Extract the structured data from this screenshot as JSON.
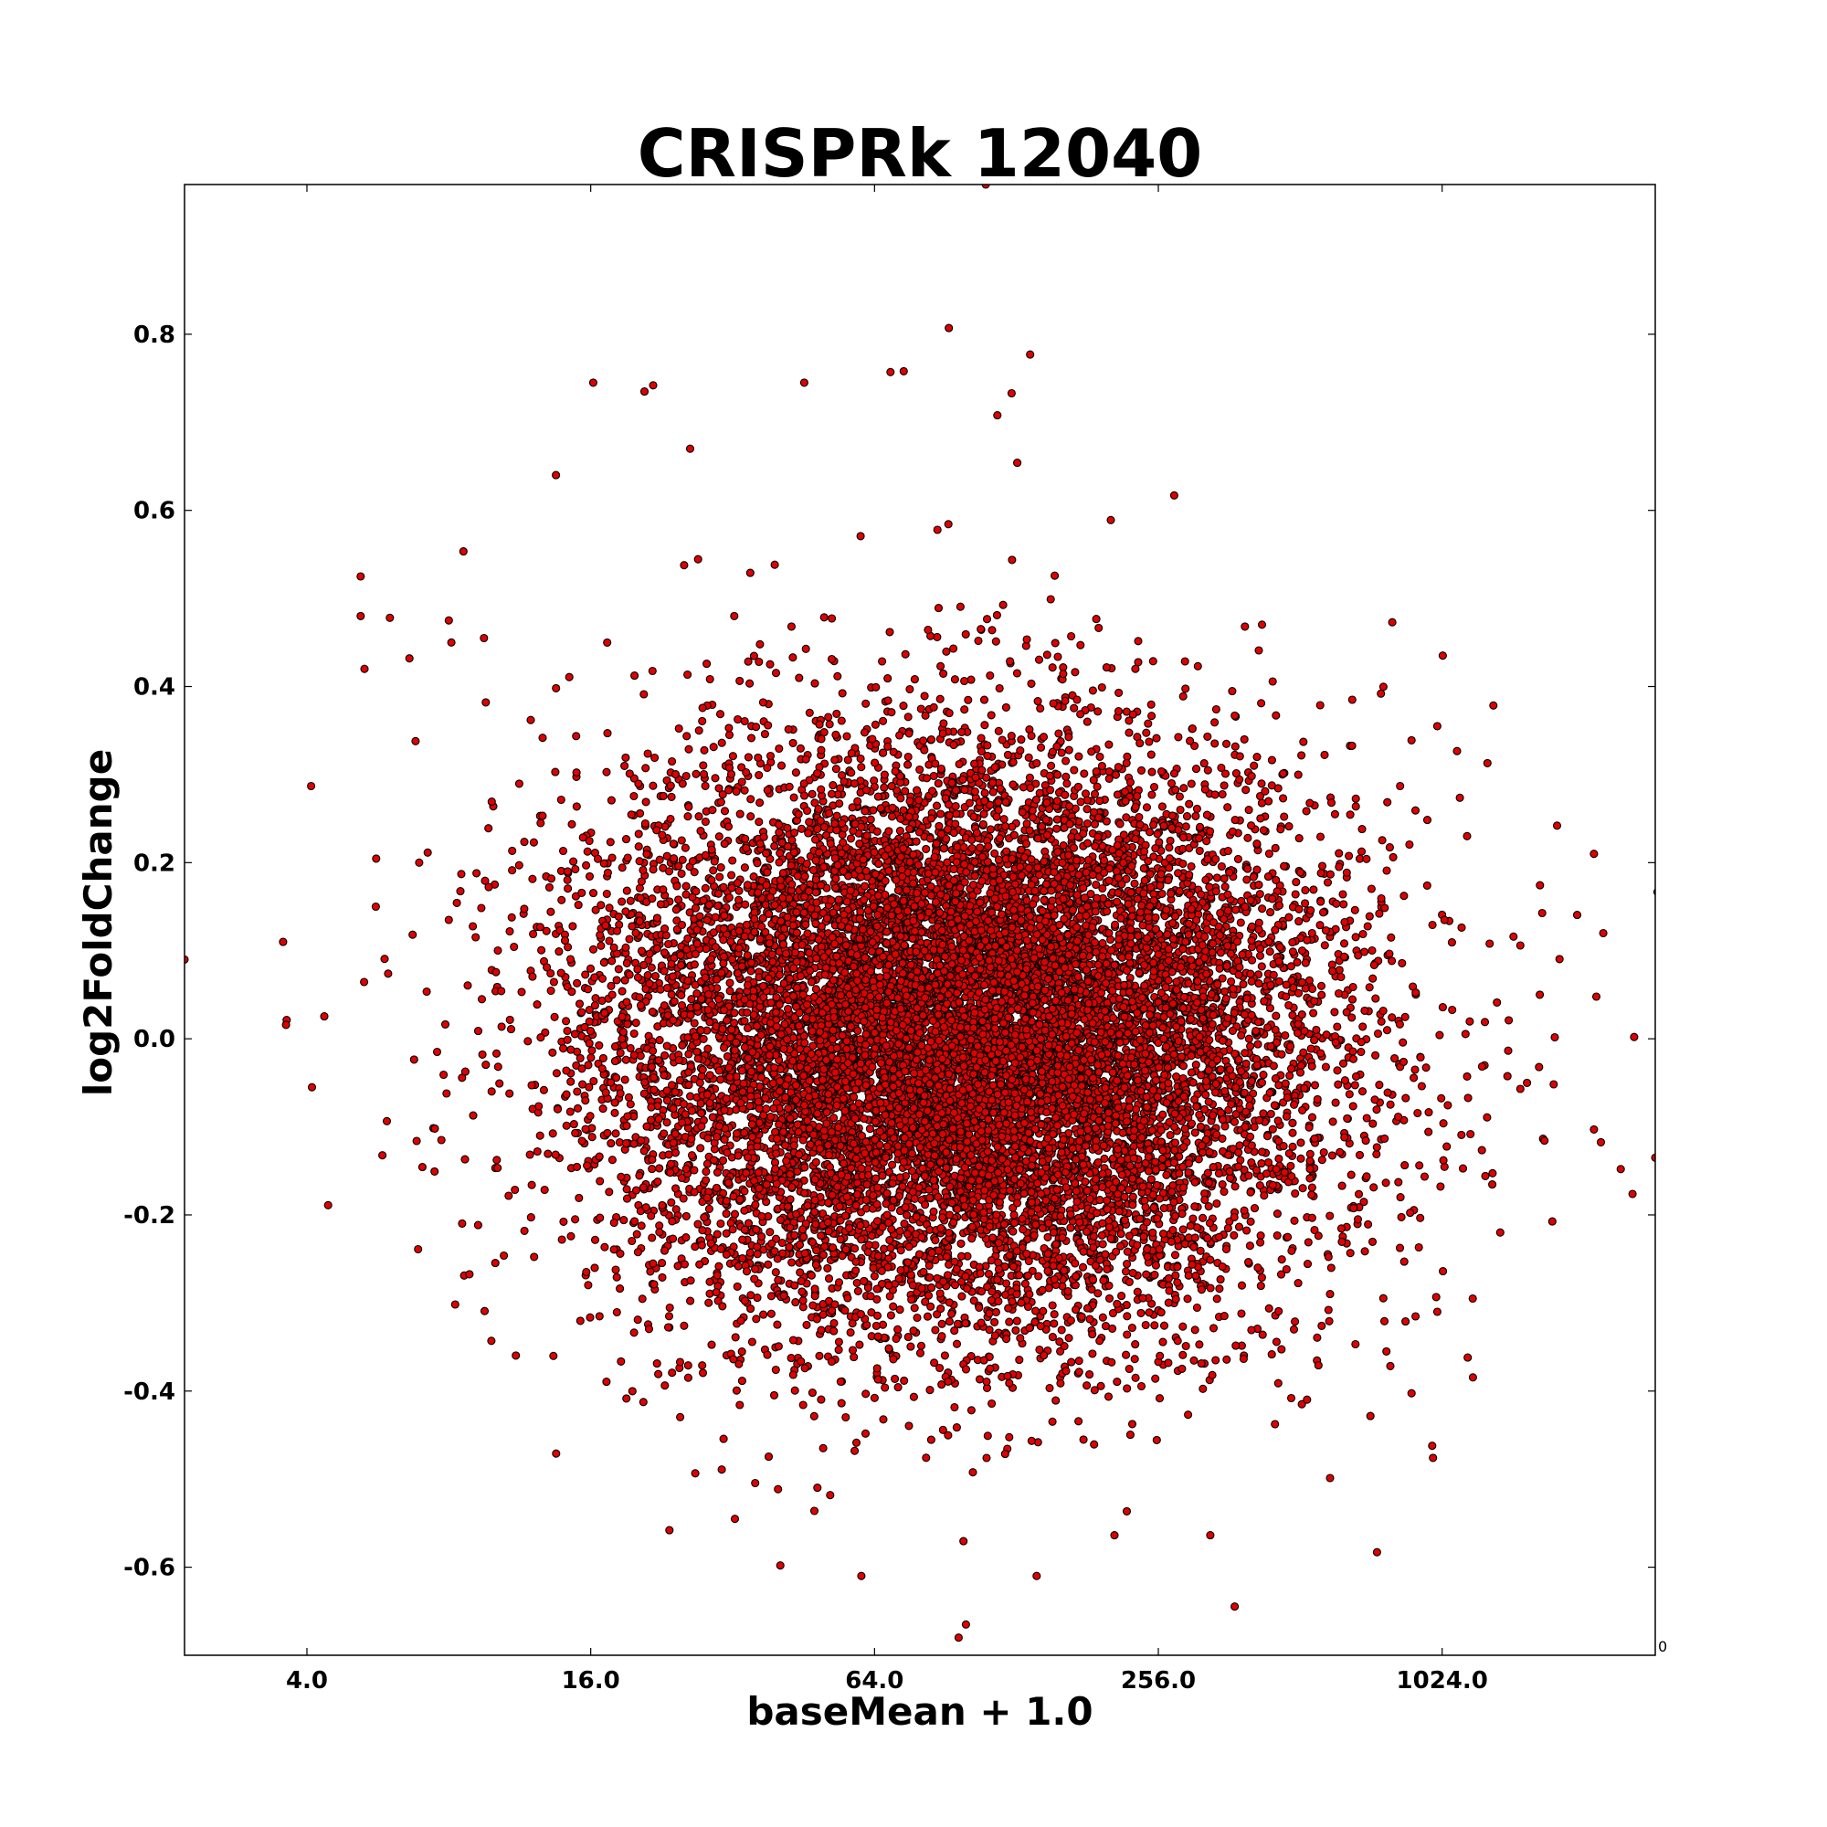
{
  "chart_data": {
    "type": "scatter",
    "title": "CRISPRk 12040",
    "xlabel": "baseMean + 1.0",
    "ylabel": "log2FoldChange",
    "x_scale": "log2",
    "xlim": [
      2.2,
      2900
    ],
    "ylim": [
      -0.7,
      0.97
    ],
    "x_ticks": [
      4,
      16,
      64,
      256,
      1024
    ],
    "x_tick_labels": [
      "4.0",
      "16.0",
      "64.0",
      "256.0",
      "1024.0"
    ],
    "y_ticks": [
      -0.6,
      -0.4,
      -0.2,
      0.0,
      0.2,
      0.4,
      0.6,
      0.8
    ],
    "y_tick_labels": [
      "-0.6",
      "-0.4",
      "-0.2",
      "0.0",
      "0.2",
      "0.4",
      "0.6",
      "0.8"
    ],
    "corner_label": "0",
    "grid": false,
    "marker_color": "#e00000",
    "marker_edge_color": "#000000",
    "dense_cloud": {
      "n_points": 14000,
      "x_center": 100,
      "x_log2_sd": 1.25,
      "y_center": 0.0,
      "y_sd": 0.16
    },
    "points": [
      [
        2.2,
        0.09
      ],
      [
        5.2,
        0.525
      ],
      [
        5.2,
        0.48
      ],
      [
        5.3,
        0.42
      ],
      [
        5.6,
        0.15
      ],
      [
        6.0,
        0.478
      ],
      [
        6.6,
        0.432
      ],
      [
        6.8,
        0.338
      ],
      [
        8.0,
        0.475
      ],
      [
        8.1,
        0.45
      ],
      [
        8.0,
        0.135
      ],
      [
        9.4,
        0.045
      ],
      [
        9.5,
        0.455
      ],
      [
        13.9,
        -0.228
      ],
      [
        13.5,
        0.64
      ],
      [
        23.5,
        -0.558
      ],
      [
        16.2,
        0.745
      ],
      [
        20.8,
        0.735
      ],
      [
        21.7,
        0.742
      ],
      [
        26.0,
        0.67
      ],
      [
        45.4,
        0.745
      ],
      [
        40.4,
        -0.598
      ],
      [
        60.0,
        -0.61
      ],
      [
        69.2,
        0.757
      ],
      [
        73.8,
        0.758
      ],
      [
        92.0,
        0.807
      ],
      [
        96.5,
        -0.68
      ],
      [
        100.0,
        -0.665
      ],
      [
        110.2,
        0.97
      ],
      [
        116.6,
        0.708
      ],
      [
        125.0,
        0.733
      ],
      [
        136.9,
        0.777
      ],
      [
        141.3,
        -0.61
      ],
      [
        141.3,
        -0.705
      ],
      [
        128.5,
        0.654
      ],
      [
        203.0,
        0.589
      ],
      [
        276.7,
        0.617
      ],
      [
        418.1,
        0.441
      ],
      [
        423.1,
        0.381
      ],
      [
        660.2,
        0.385
      ],
      [
        1000.0,
        0.355
      ],
      [
        1795.0,
        0.242
      ],
      [
        2150.0,
        0.21
      ],
      [
        2250.0,
        0.12
      ],
      [
        2150.0,
        -0.103
      ],
      [
        2450.0,
        -0.148
      ],
      [
        2900.0,
        -0.135
      ],
      [
        745.0,
        -0.583
      ],
      [
        1000.0,
        -0.31
      ],
      [
        1160.0,
        -0.362
      ],
      [
        516.0,
        -0.415
      ],
      [
        490.0,
        -0.408
      ],
      [
        780.0,
        -0.355
      ],
      [
        1500.0,
        0.106
      ],
      [
        1650.0,
        0.05
      ],
      [
        1550.0,
        -0.05
      ],
      [
        1360.0,
        -0.22
      ]
    ]
  }
}
